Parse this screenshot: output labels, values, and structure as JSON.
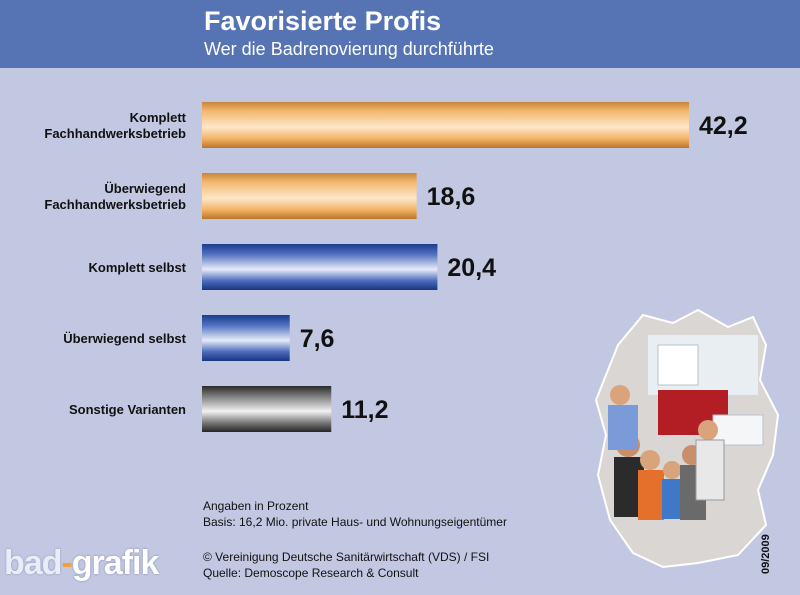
{
  "header": {
    "title": "Favorisierte Profis",
    "subtitle": "Wer die Badrenovierung durchführte"
  },
  "chart_data": {
    "type": "bar",
    "orientation": "horizontal",
    "title": "Favorisierte Profis",
    "subtitle": "Wer die Badrenovierung durchführte",
    "unit": "Prozent",
    "categories": [
      "Komplett Fachhandwerksbetrieb",
      "Überwiegend Fachhandwerksbetrieb",
      "Komplett selbst",
      "Überwiegend selbst",
      "Sonstige Varianten"
    ],
    "category_lines": [
      [
        "Komplett",
        "Fachhandwerksbetrieb"
      ],
      [
        "Überwiegend",
        "Fachhandwerksbetrieb"
      ],
      [
        "Komplett selbst"
      ],
      [
        "Überwiegend selbst"
      ],
      [
        "Sonstige Varianten"
      ]
    ],
    "values": [
      42.2,
      18.6,
      20.4,
      7.6,
      11.2
    ],
    "value_labels": [
      "42,2",
      "18,6",
      "20,4",
      "7,6",
      "11,2"
    ],
    "bar_colors": [
      "orange",
      "orange",
      "blue",
      "blue",
      "gray"
    ],
    "xlim": [
      0,
      42.2
    ],
    "grid": false,
    "legend": false
  },
  "notes": {
    "line1": "Angaben in Prozent",
    "line2": "Basis: 16,2 Mio. private Haus- und Wohnungseigentümer",
    "line3": "© Vereinigung Deutsche Sanitärwirtschaft (VDS) / FSI",
    "line4": "Quelle: Demoscope Research & Consult"
  },
  "logo": {
    "part1": "bad",
    "part2": "-",
    "part3": "grafik"
  },
  "datecode": "09/2009",
  "colors": {
    "header_bg": "#5673b3",
    "page_bg": "#c3c8e2",
    "orange_mid": "#f7c480",
    "blue_mid": "#6a85c8",
    "gray_mid": "#9c9c9c"
  }
}
